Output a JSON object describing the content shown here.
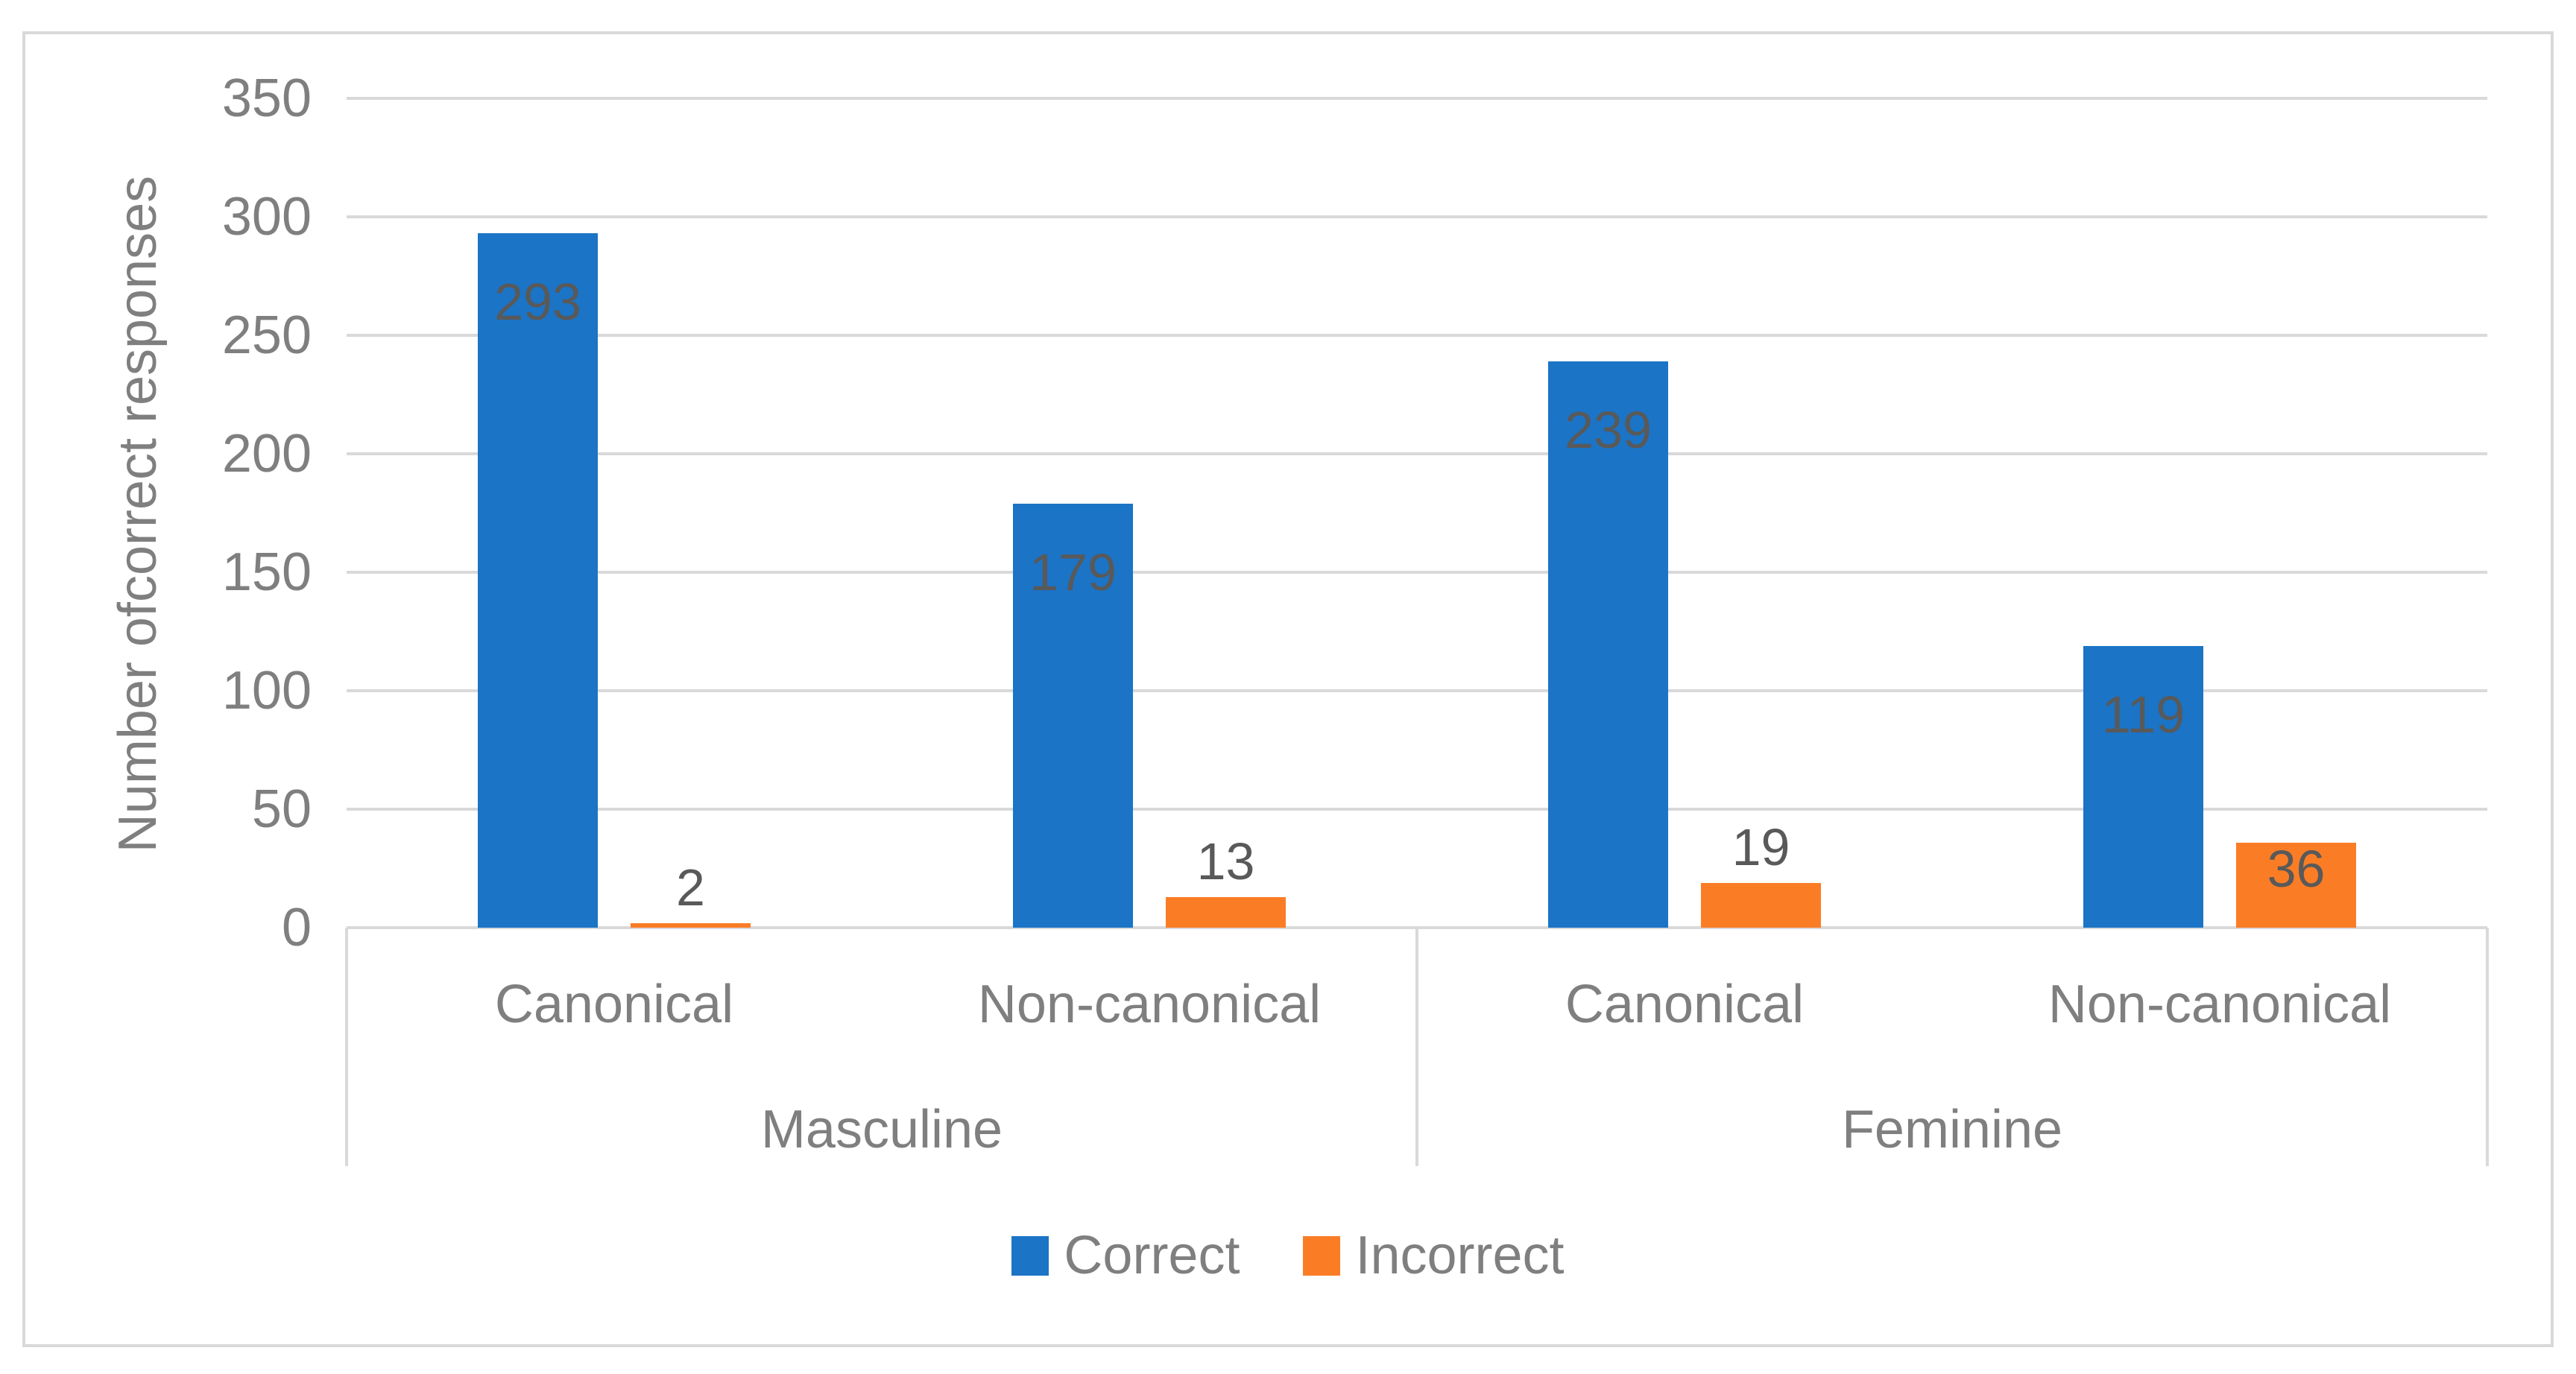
{
  "figure": {
    "background": "#FFFFFF",
    "border_color": "#D9D9D9"
  },
  "colors": {
    "gridline": "#D9D9D9",
    "axis_text": "#7F7F7F",
    "data_label_text": "#595959",
    "correct_blue": "#1B74C6",
    "incorrect_orange": "#FA7D26"
  },
  "chart_data": {
    "type": "bar",
    "title": "",
    "xlabel": "",
    "ylabel": "Number ofcorrect responses",
    "ylim": [
      0,
      350
    ],
    "yticks": [
      0,
      50,
      100,
      150,
      200,
      250,
      300,
      350
    ],
    "grid": true,
    "legend_position": "bottom",
    "group_axis": [
      {
        "label": "Masculine",
        "categories": [
          "Canonical",
          "Non-canonical"
        ]
      },
      {
        "label": "Feminine",
        "categories": [
          "Canonical",
          "Non-canonical"
        ]
      }
    ],
    "categories_flat": [
      "Masculine Canonical",
      "Masculine Non-canonical",
      "Feminine Canonical",
      "Feminine Non-canonical"
    ],
    "series": [
      {
        "name": "Correct",
        "color": "#1B74C6",
        "values": [
          293,
          179,
          239,
          119
        ],
        "data_label_color": "#595959"
      },
      {
        "name": "Incorrect",
        "color": "#FA7D26",
        "values": [
          2,
          13,
          19,
          36
        ],
        "data_label_color": "#595959"
      }
    ],
    "data_labels_visible": true
  }
}
